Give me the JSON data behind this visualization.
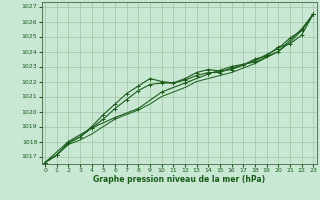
{
  "xlabel": "Graphe pression niveau de la mer (hPa)",
  "ylim": [
    1016.5,
    1027.3
  ],
  "xlim": [
    -0.3,
    23.3
  ],
  "yticks": [
    1017,
    1018,
    1019,
    1020,
    1021,
    1022,
    1023,
    1024,
    1025,
    1026,
    1027
  ],
  "xticks": [
    0,
    1,
    2,
    3,
    4,
    5,
    6,
    7,
    8,
    9,
    10,
    11,
    12,
    13,
    14,
    15,
    16,
    17,
    18,
    19,
    20,
    21,
    22,
    23
  ],
  "bg_color": "#c8e8d4",
  "grid_color": "#99bb99",
  "line_color": "#1a5c1a",
  "series": [
    {
      "x": [
        0,
        1,
        2,
        3,
        4,
        5,
        6,
        7,
        8,
        9,
        10,
        11,
        12,
        13,
        14,
        15,
        16,
        17,
        18,
        19,
        20,
        21,
        22,
        23
      ],
      "y": [
        1016.6,
        1017.1,
        1017.8,
        1018.1,
        1018.5,
        1019.0,
        1019.5,
        1019.8,
        1020.1,
        1020.5,
        1021.0,
        1021.3,
        1021.6,
        1022.0,
        1022.2,
        1022.4,
        1022.6,
        1022.9,
        1023.2,
        1023.6,
        1024.0,
        1024.6,
        1025.4,
        1026.5
      ],
      "marker": null,
      "lw": 0.7
    },
    {
      "x": [
        0,
        1,
        2,
        3,
        4,
        5,
        6,
        7,
        8,
        9,
        10,
        11,
        12,
        13,
        14,
        15,
        16,
        17,
        18,
        19,
        20,
        21,
        22,
        23
      ],
      "y": [
        1016.6,
        1017.1,
        1017.9,
        1018.3,
        1018.9,
        1019.5,
        1020.2,
        1020.8,
        1021.4,
        1021.8,
        1021.9,
        1021.9,
        1022.1,
        1022.4,
        1022.6,
        1022.6,
        1022.9,
        1023.1,
        1023.4,
        1023.8,
        1024.2,
        1024.9,
        1025.4,
        1026.5
      ],
      "marker": "+",
      "lw": 0.8
    },
    {
      "x": [
        0,
        1,
        2,
        3,
        4,
        5,
        6,
        7,
        8,
        9,
        10,
        11,
        12,
        13,
        14,
        15,
        16,
        17,
        18,
        19,
        20,
        21,
        22,
        23
      ],
      "y": [
        1016.6,
        1017.1,
        1017.9,
        1018.3,
        1019.0,
        1019.8,
        1020.5,
        1021.2,
        1021.7,
        1022.2,
        1022.0,
        1021.9,
        1022.2,
        1022.6,
        1022.8,
        1022.7,
        1022.8,
        1023.1,
        1023.5,
        1023.7,
        1024.3,
        1024.5,
        1025.1,
        1026.5
      ],
      "marker": "+",
      "lw": 0.8
    },
    {
      "x": [
        0,
        2,
        4,
        6,
        8,
        10,
        12,
        14,
        16,
        18,
        20,
        22,
        23
      ],
      "y": [
        1016.6,
        1018.0,
        1018.9,
        1019.6,
        1020.2,
        1021.3,
        1021.9,
        1022.5,
        1023.0,
        1023.3,
        1024.0,
        1025.5,
        1026.5
      ],
      "marker": "+",
      "lw": 0.8
    }
  ]
}
